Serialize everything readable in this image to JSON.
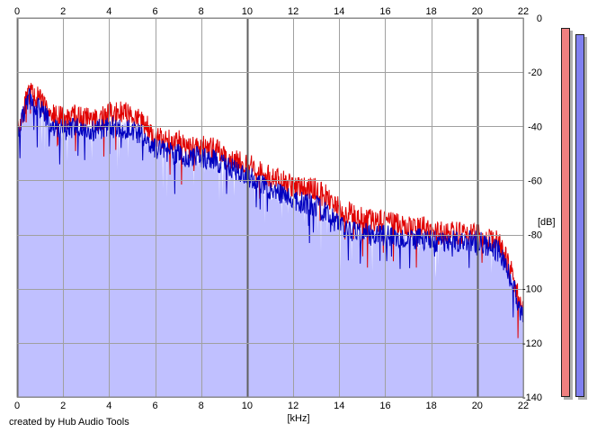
{
  "chart_data": {
    "type": "area",
    "xlabel": "[kHz]",
    "ylabel": "[dB]",
    "xlim": [
      0,
      22
    ],
    "ylim": [
      -140,
      0
    ],
    "x_ticks": [
      "0",
      "2",
      "4",
      "6",
      "8",
      "10",
      "12",
      "14",
      "16",
      "18",
      "20",
      "22"
    ],
    "y_ticks": [
      "0",
      "-20",
      "-40",
      "-60",
      "-80",
      "-100",
      "-120",
      "-140"
    ],
    "grid": true,
    "series": [
      {
        "color": "#e00000",
        "fill": null,
        "x": [
          0,
          0.5,
          1,
          1.5,
          2,
          2.5,
          3,
          3.5,
          4,
          4.5,
          5,
          5.5,
          6,
          6.5,
          7,
          7.5,
          8,
          8.5,
          9,
          9.5,
          10,
          10.5,
          11,
          11.5,
          12,
          12.5,
          13,
          13.5,
          14,
          14.5,
          15,
          15.5,
          16,
          16.5,
          17,
          17.5,
          18,
          18.5,
          19,
          19.5,
          20,
          20.5,
          21,
          21.5,
          22
        ],
        "values": [
          -42,
          -27,
          -30,
          -35,
          -37,
          -36,
          -37,
          -37,
          -35,
          -34,
          -36,
          -38,
          -44,
          -45,
          -45,
          -47,
          -47,
          -48,
          -50,
          -52,
          -54,
          -56,
          -58,
          -60,
          -62,
          -62,
          -63,
          -66,
          -70,
          -72,
          -73,
          -74,
          -75,
          -76,
          -77,
          -77,
          -78,
          -79,
          -79,
          -80,
          -80,
          -81,
          -83,
          -94,
          -106
        ]
      },
      {
        "color": "#0000c0",
        "fill": "#c0c0ff",
        "x": [
          0,
          0.5,
          1,
          1.5,
          2,
          2.5,
          3,
          3.5,
          4,
          4.5,
          5,
          5.5,
          6,
          6.5,
          7,
          7.5,
          8,
          8.5,
          9,
          9.5,
          10,
          10.5,
          11,
          11.5,
          12,
          12.5,
          13,
          13.5,
          14,
          14.5,
          15,
          15.5,
          16,
          16.5,
          17,
          17.5,
          18,
          18.5,
          19,
          19.5,
          20,
          20.5,
          21,
          21.5,
          22
        ],
        "values": [
          -44,
          -29,
          -33,
          -39,
          -41,
          -40,
          -41,
          -41,
          -40,
          -40,
          -41,
          -43,
          -48,
          -49,
          -50,
          -51,
          -51,
          -52,
          -54,
          -56,
          -58,
          -60,
          -63,
          -65,
          -67,
          -68,
          -69,
          -72,
          -76,
          -78,
          -79,
          -80,
          -80,
          -81,
          -81,
          -81,
          -82,
          -82,
          -82,
          -82,
          -82,
          -84,
          -86,
          -97,
          -111
        ]
      }
    ]
  },
  "meters": [
    {
      "fill": "#f08080"
    },
    {
      "fill": "#8080f0"
    }
  ],
  "footer": {
    "credit": "created by Hub Audio Tools"
  }
}
